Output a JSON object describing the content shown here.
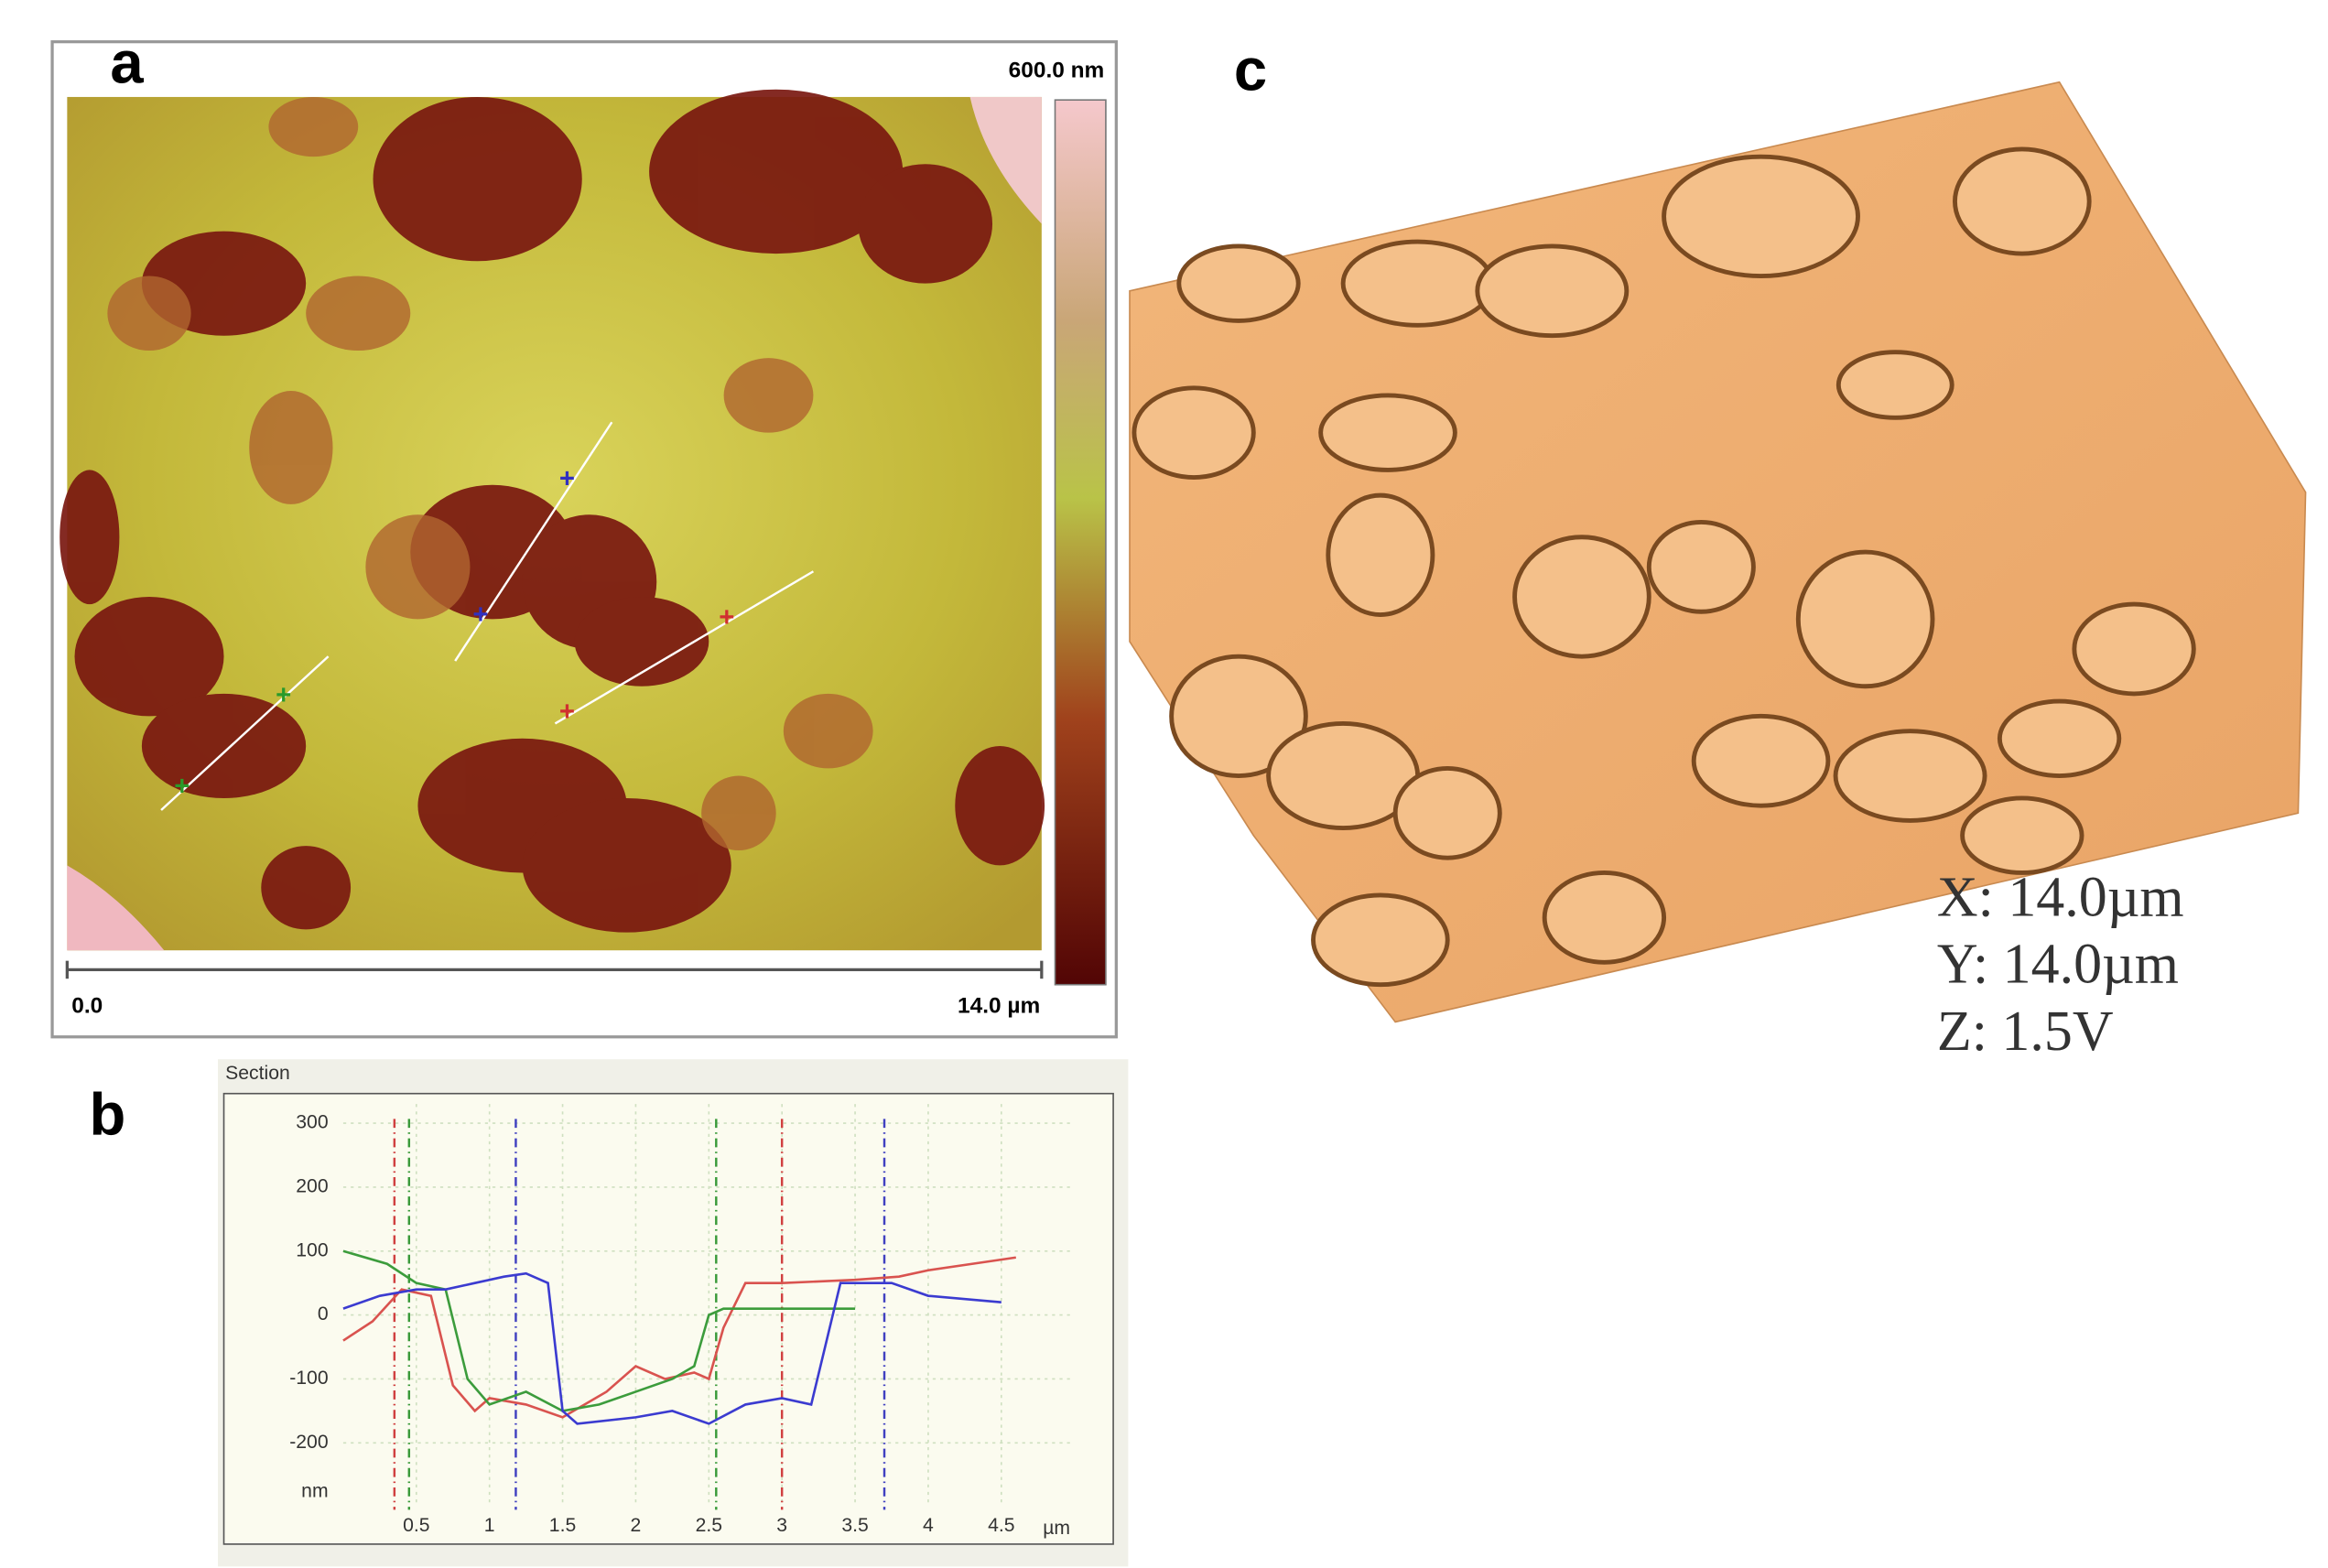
{
  "panels": {
    "a": {
      "label": "a",
      "scale_max": "600.0 nm",
      "scale_start": "0.0",
      "scale_end": "14.0 µm"
    },
    "b": {
      "label": "b"
    },
    "c": {
      "label": "c",
      "dims": [
        "X: 14.0µm",
        "Y: 14.0µm",
        "Z: 1.5V"
      ]
    }
  },
  "chart_data": {
    "type": "line",
    "title": "Section",
    "x_unit": "µm",
    "y_unit": "nm",
    "xlim": [
      0,
      5
    ],
    "ylim": [
      -300,
      330
    ],
    "xticks": [
      0.5,
      1,
      1.5,
      2,
      2.5,
      3,
      3.5,
      4,
      4.5
    ],
    "yticks": [
      -200,
      -100,
      0,
      100,
      200,
      300
    ],
    "grid": true,
    "series": [
      {
        "name": "red",
        "color": "#d9534f",
        "x": [
          0,
          0.2,
          0.4,
          0.6,
          0.75,
          0.9,
          1.0,
          1.25,
          1.5,
          1.8,
          2.0,
          2.2,
          2.4,
          2.5,
          2.6,
          2.75,
          3.0,
          3.5,
          3.8,
          4.0,
          4.3,
          4.6
        ],
        "values": [
          -40,
          -10,
          40,
          30,
          -110,
          -150,
          -130,
          -140,
          -160,
          -120,
          -80,
          -100,
          -90,
          -100,
          -20,
          50,
          50,
          55,
          60,
          70,
          80,
          90
        ]
      },
      {
        "name": "green",
        "color": "#3c9c3c",
        "x": [
          0,
          0.3,
          0.5,
          0.7,
          0.85,
          1.0,
          1.25,
          1.5,
          1.75,
          2.0,
          2.25,
          2.4,
          2.5,
          2.6,
          3.0,
          3.5
        ],
        "values": [
          100,
          80,
          50,
          40,
          -100,
          -140,
          -120,
          -150,
          -140,
          -120,
          -100,
          -80,
          0,
          10,
          10,
          10
        ]
      },
      {
        "name": "blue",
        "color": "#3b3bd0",
        "x": [
          0,
          0.25,
          0.5,
          0.7,
          0.9,
          1.1,
          1.25,
          1.4,
          1.5,
          1.6,
          2.0,
          2.25,
          2.5,
          2.75,
          3.0,
          3.2,
          3.4,
          3.75,
          4.0,
          4.5
        ],
        "values": [
          10,
          30,
          40,
          40,
          50,
          60,
          65,
          50,
          -150,
          -170,
          -160,
          -150,
          -170,
          -140,
          -130,
          -140,
          50,
          50,
          30,
          20
        ]
      }
    ],
    "markers": [
      {
        "color": "#d04040",
        "x": 0.35
      },
      {
        "color": "#d04040",
        "x": 3.0
      },
      {
        "color": "#3a9a3a",
        "x": 0.45
      },
      {
        "color": "#3a9a3a",
        "x": 2.55
      },
      {
        "color": "#4040c0",
        "x": 1.18
      },
      {
        "color": "#4040c0",
        "x": 3.7
      }
    ]
  }
}
